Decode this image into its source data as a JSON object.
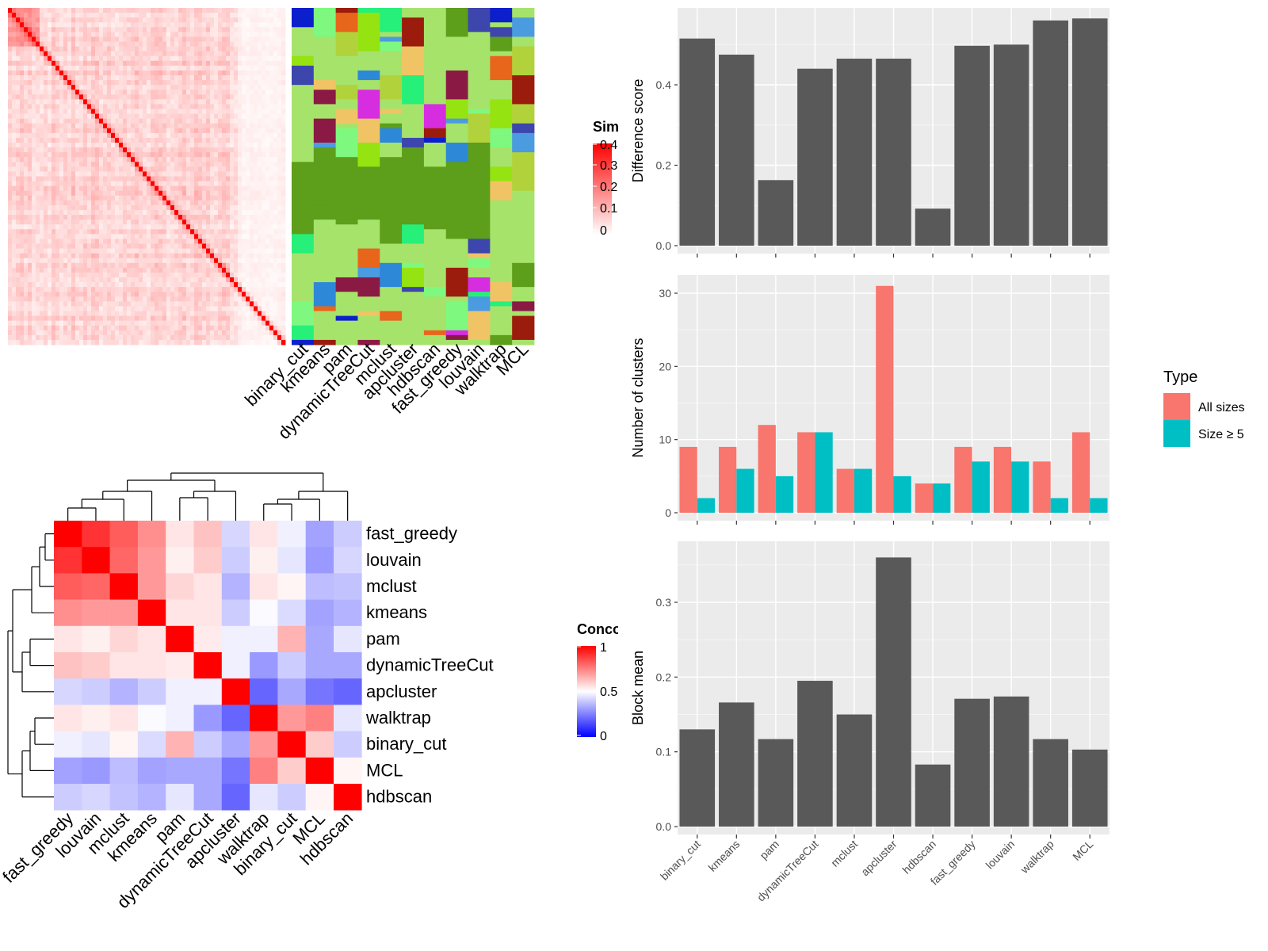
{
  "colors": {
    "panel_bg": "#ebebeb",
    "grid": "#ffffff",
    "bar_dark": "#595959",
    "all_sizes": "#f8766d",
    "size_ge5": "#00bfc4",
    "heat_high": "#ff0000",
    "heat_mid": "#ffffff",
    "heat_low": "#0000ff"
  },
  "similarity_heatmap": {
    "legend_title": "Similarity",
    "legend_labels": [
      "0.4",
      "0.3",
      "0.2",
      "0.1",
      "0"
    ],
    "method_columns": [
      "binary_cut",
      "kmeans",
      "pam",
      "dynamicTreeCut",
      "mclust",
      "apcluster",
      "hdbscan",
      "fast_greedy",
      "louvain",
      "walktrap",
      "MCL"
    ]
  },
  "concordance_heatmap": {
    "legend_title": "Concordance",
    "legend_labels": [
      "1",
      "0.5",
      "0"
    ],
    "row_labels": [
      "fast_greedy",
      "louvain",
      "mclust",
      "kmeans",
      "pam",
      "dynamicTreeCut",
      "apcluster",
      "walktrap",
      "binary_cut",
      "MCL",
      "hdbscan"
    ],
    "col_labels": [
      "fast_greedy",
      "louvain",
      "mclust",
      "kmeans",
      "pam",
      "dynamicTreeCut",
      "apcluster",
      "walktrap",
      "binary_cut",
      "MCL",
      "hdbscan"
    ],
    "matrix": [
      [
        1.0,
        0.9,
        0.82,
        0.72,
        0.55,
        0.62,
        0.42,
        0.55,
        0.47,
        0.32,
        0.4
      ],
      [
        0.9,
        1.0,
        0.8,
        0.7,
        0.53,
        0.6,
        0.4,
        0.53,
        0.45,
        0.3,
        0.42
      ],
      [
        0.82,
        0.8,
        1.0,
        0.7,
        0.58,
        0.55,
        0.35,
        0.55,
        0.52,
        0.37,
        0.38
      ],
      [
        0.72,
        0.7,
        0.7,
        1.0,
        0.55,
        0.55,
        0.4,
        0.49,
        0.43,
        0.32,
        0.35
      ],
      [
        0.55,
        0.53,
        0.58,
        0.55,
        1.0,
        0.54,
        0.47,
        0.47,
        0.65,
        0.33,
        0.45
      ],
      [
        0.62,
        0.6,
        0.55,
        0.55,
        0.54,
        1.0,
        0.47,
        0.3,
        0.4,
        0.33,
        0.33
      ],
      [
        0.42,
        0.4,
        0.35,
        0.4,
        0.47,
        0.47,
        1.0,
        0.2,
        0.33,
        0.23,
        0.2
      ],
      [
        0.55,
        0.53,
        0.55,
        0.49,
        0.47,
        0.3,
        0.2,
        1.0,
        0.7,
        0.75,
        0.45
      ],
      [
        0.47,
        0.45,
        0.52,
        0.43,
        0.65,
        0.4,
        0.33,
        0.7,
        1.0,
        0.6,
        0.4
      ],
      [
        0.32,
        0.3,
        0.37,
        0.32,
        0.33,
        0.33,
        0.23,
        0.75,
        0.6,
        1.0,
        0.52
      ],
      [
        0.4,
        0.42,
        0.38,
        0.35,
        0.45,
        0.33,
        0.2,
        0.45,
        0.4,
        0.52,
        1.0
      ]
    ]
  },
  "chart_data": [
    {
      "type": "bar",
      "categories": [
        "binary_cut",
        "kmeans",
        "pam",
        "dynamicTreeCut",
        "mclust",
        "apcluster",
        "hdbscan",
        "fast_greedy",
        "louvain",
        "walktrap",
        "MCL"
      ],
      "values": [
        0.515,
        0.475,
        0.163,
        0.44,
        0.465,
        0.465,
        0.092,
        0.497,
        0.5,
        0.56,
        0.565
      ],
      "ylabel": "Difference score",
      "ylim": [
        0,
        0.6
      ],
      "yticks": [
        "0.0",
        "0.2",
        "0.4"
      ],
      "grid": true
    },
    {
      "type": "bar",
      "categories": [
        "binary_cut",
        "kmeans",
        "pam",
        "dynamicTreeCut",
        "mclust",
        "apcluster",
        "hdbscan",
        "fast_greedy",
        "louvain",
        "walktrap",
        "MCL"
      ],
      "series": [
        {
          "name": "All sizes",
          "values": [
            9,
            9,
            12,
            11,
            6,
            31,
            4,
            9,
            9,
            7,
            11
          ]
        },
        {
          "name": "Size ≥ 5",
          "values": [
            2,
            6,
            5,
            11,
            6,
            5,
            4,
            7,
            7,
            2,
            2
          ]
        }
      ],
      "ylabel": "Number of clusters",
      "ylim": [
        0,
        32
      ],
      "yticks": [
        "0",
        "10",
        "20",
        "30"
      ],
      "legend_title": "Type",
      "legend_position": "right",
      "grid": true
    },
    {
      "type": "bar",
      "categories": [
        "binary_cut",
        "kmeans",
        "pam",
        "dynamicTreeCut",
        "mclust",
        "apcluster",
        "hdbscan",
        "fast_greedy",
        "louvain",
        "walktrap",
        "MCL"
      ],
      "values": [
        0.13,
        0.166,
        0.117,
        0.195,
        0.15,
        0.36,
        0.083,
        0.171,
        0.174,
        0.117,
        0.103
      ],
      "ylabel": "Block mean",
      "ylim": [
        0,
        0.37
      ],
      "yticks": [
        "0.0",
        "0.1",
        "0.2",
        "0.3"
      ],
      "grid": true
    }
  ]
}
